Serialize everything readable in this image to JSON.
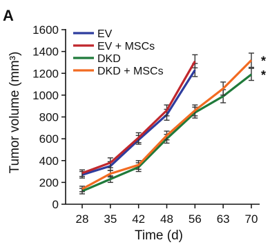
{
  "panel_label": "A",
  "significance_marker": "*",
  "chart_data": {
    "type": "line",
    "xlabel": "Time (d)",
    "ylabel": "Tumor volume (mm³)",
    "x": [
      28,
      35,
      42,
      48,
      56,
      63,
      70
    ],
    "ylim": [
      0,
      1600
    ],
    "yticks": [
      0,
      200,
      400,
      600,
      800,
      1000,
      1200,
      1400,
      1600
    ],
    "grid": false,
    "legend_position": "top-left",
    "series": [
      {
        "name": "EV",
        "color": "#2e3d9e",
        "x": [
          28,
          35,
          42,
          48,
          56
        ],
        "values": [
          270,
          350,
          590,
          820,
          1230
        ],
        "errors": [
          30,
          40,
          40,
          50,
          60
        ]
      },
      {
        "name": "EV + MSCs",
        "color": "#c0272d",
        "x": [
          28,
          35,
          42,
          48,
          56
        ],
        "values": [
          285,
          380,
          610,
          860,
          1310
        ],
        "errors": [
          30,
          45,
          45,
          50,
          60
        ]
      },
      {
        "name": "DKD",
        "color": "#1f7a3a",
        "x": [
          28,
          35,
          42,
          48,
          56,
          63,
          70
        ],
        "values": [
          120,
          230,
          340,
          600,
          840,
          990,
          1190
        ],
        "errors": [
          25,
          30,
          40,
          40,
          50,
          60,
          55
        ]
      },
      {
        "name": "DKD + MSCs",
        "color": "#f26b22",
        "x": [
          28,
          35,
          42,
          48,
          56,
          63,
          70
        ],
        "values": [
          140,
          280,
          360,
          630,
          860,
          1060,
          1320
        ],
        "errors": [
          25,
          30,
          40,
          40,
          50,
          60,
          65
        ]
      }
    ],
    "annotations": [
      "*",
      "*"
    ]
  }
}
